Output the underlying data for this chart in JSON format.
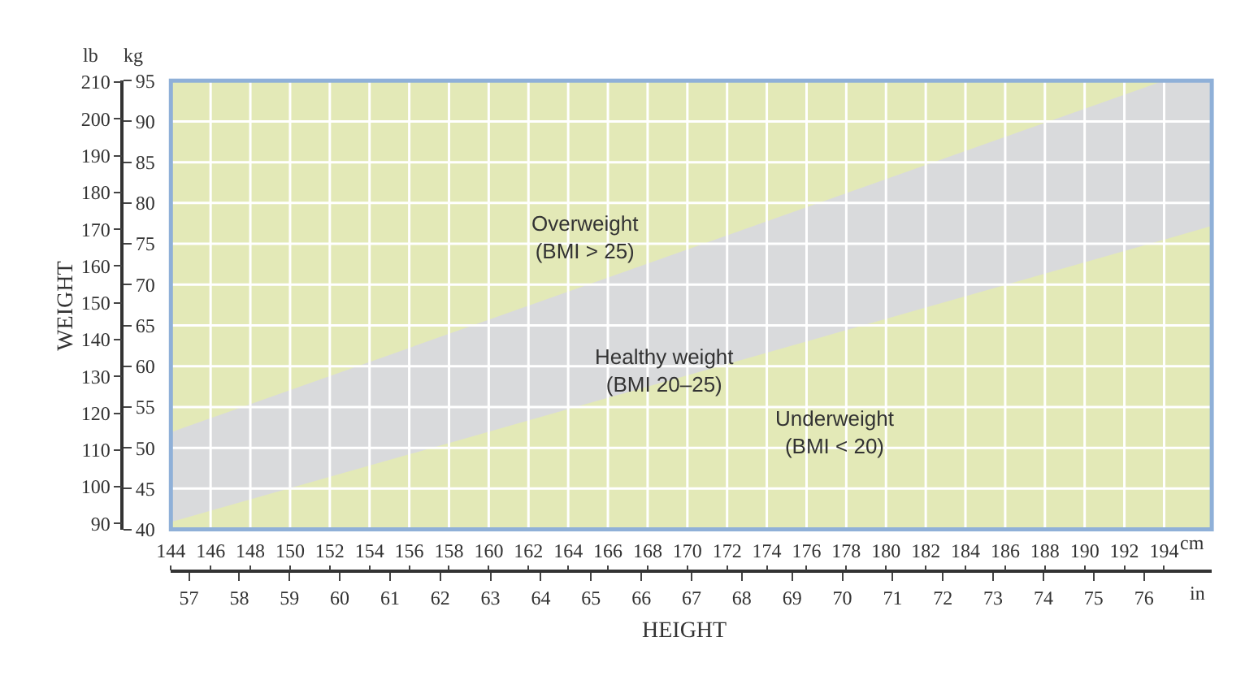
{
  "chart_data": {
    "type": "area",
    "xlabel": "HEIGHT",
    "y2label": "WEIGHT",
    "x": [
      144,
      194,
      196.4
    ],
    "series": [
      {
        "color": "#d9dadc",
        "values": [
          51.9,
          95,
          95
        ]
      },
      {
        "color": "#e3e9b7",
        "values": [
          40.9,
          75.5,
          77.2
        ]
      }
    ],
    "xlim": [
      144,
      196.4
    ],
    "xticks": [
      144,
      146,
      148,
      150,
      152,
      154,
      156,
      158,
      160,
      162,
      164,
      166,
      168,
      170,
      172,
      174,
      176,
      178,
      180,
      182,
      184,
      186,
      188,
      190,
      192,
      194
    ],
    "x2lim": [
      56.64,
      77.35
    ],
    "x2ticks": [
      57,
      58,
      59,
      60,
      61,
      62,
      63,
      64,
      65,
      66,
      67,
      68,
      69,
      70,
      71,
      72,
      73,
      74,
      75,
      76
    ],
    "ylim": [
      40,
      95
    ],
    "yticks": [
      40,
      45,
      50,
      55,
      60,
      65,
      70,
      75,
      80,
      85,
      90,
      95
    ],
    "y2lim": [
      88.4,
      210.4
    ],
    "y2ticks": [
      90,
      100,
      110,
      120,
      130,
      140,
      150,
      160,
      170,
      180,
      190,
      200,
      210
    ],
    "grid": true,
    "annotations": [
      "lb",
      "kg",
      "cm",
      "in",
      "Overweight\n(BMI > 25)",
      "Healthy weight\n(BMI 20–25)",
      "Underweight\n(BMI < 20)"
    ]
  }
}
